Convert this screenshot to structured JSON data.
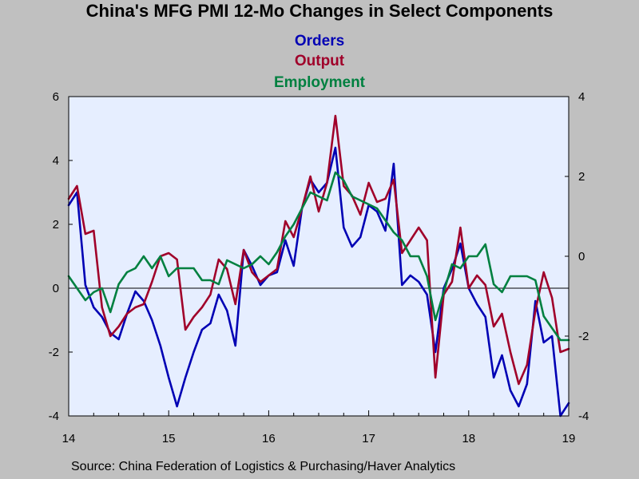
{
  "chart_data": {
    "type": "line",
    "title": "China's MFG PMI 12-Mo Changes in Select Components",
    "source": "Source:  China Federation of Logistics & Purchasing/Haver Analytics",
    "x_start": "2014-01",
    "x_ticks": [
      "14",
      "15",
      "16",
      "17",
      "18",
      "19"
    ],
    "left_axis": {
      "ylim": [
        -4,
        6
      ],
      "ticks": [
        "-4",
        "-2",
        "0",
        "2",
        "4",
        "6"
      ]
    },
    "right_axis": {
      "ylim": [
        -4,
        4
      ],
      "ticks": [
        "-4",
        "-2",
        "0",
        "2",
        "4"
      ]
    },
    "zero_line": 0,
    "background": "#e6eeff",
    "series": [
      {
        "name": "Orders",
        "axis": "left",
        "color": "#0000b4",
        "values": [
          2.6,
          3.0,
          0.1,
          -0.6,
          -0.9,
          -1.4,
          -1.6,
          -0.8,
          -0.1,
          -0.4,
          -1.0,
          -1.8,
          -2.8,
          -3.7,
          -2.8,
          -2.0,
          -1.3,
          -1.1,
          -0.2,
          -0.7,
          -1.8,
          1.2,
          0.7,
          0.1,
          0.4,
          0.5,
          1.5,
          0.7,
          2.5,
          3.4,
          3.0,
          3.3,
          4.4,
          1.9,
          1.3,
          1.6,
          2.6,
          2.4,
          1.8,
          3.9,
          0.1,
          0.4,
          0.2,
          -0.2,
          -2.0,
          0.0,
          0.6,
          1.4,
          0.0,
          -0.5,
          -0.9,
          -2.8,
          -2.1,
          -3.2,
          -3.7,
          -3.0,
          -0.4,
          -1.7,
          -1.5,
          -4.0,
          -3.6
        ]
      },
      {
        "name": "Output",
        "axis": "left",
        "color": "#a0002a",
        "values": [
          2.8,
          3.2,
          1.7,
          1.8,
          -0.6,
          -1.5,
          -1.2,
          -0.8,
          -0.6,
          -0.5,
          0.2,
          1.0,
          1.1,
          0.9,
          -1.3,
          -0.9,
          -0.6,
          -0.2,
          0.9,
          0.6,
          -0.5,
          1.2,
          0.5,
          0.2,
          0.4,
          0.6,
          2.1,
          1.6,
          2.5,
          3.5,
          2.4,
          3.3,
          5.4,
          3.2,
          2.9,
          2.3,
          3.3,
          2.7,
          2.8,
          3.4,
          1.1,
          1.5,
          1.9,
          1.5,
          -2.8,
          -0.2,
          0.2,
          1.9,
          0.0,
          0.4,
          0.1,
          -1.2,
          -0.8,
          -2.0,
          -3.0,
          -2.4,
          -0.7,
          0.5,
          -0.3,
          -2.0,
          -1.9
        ]
      },
      {
        "name": "Employment",
        "axis": "right",
        "color": "#008040",
        "values": [
          -0.5,
          -0.8,
          -1.1,
          -0.9,
          -0.8,
          -1.4,
          -0.7,
          -0.4,
          -0.3,
          0.0,
          -0.3,
          0.0,
          -0.5,
          -0.3,
          -0.3,
          -0.3,
          -0.6,
          -0.6,
          -0.7,
          -0.1,
          -0.2,
          -0.3,
          -0.2,
          0.0,
          -0.2,
          0.1,
          0.5,
          0.8,
          1.2,
          1.6,
          1.5,
          1.4,
          2.1,
          1.9,
          1.5,
          1.4,
          1.3,
          1.2,
          0.9,
          0.6,
          0.4,
          0.0,
          0.0,
          -0.5,
          -1.6,
          -0.9,
          -0.2,
          -0.3,
          0.0,
          0.0,
          0.3,
          -0.7,
          -0.9,
          -0.5,
          -0.5,
          -0.5,
          -0.6,
          -1.5,
          -1.8,
          -2.1,
          -2.1
        ]
      }
    ]
  }
}
